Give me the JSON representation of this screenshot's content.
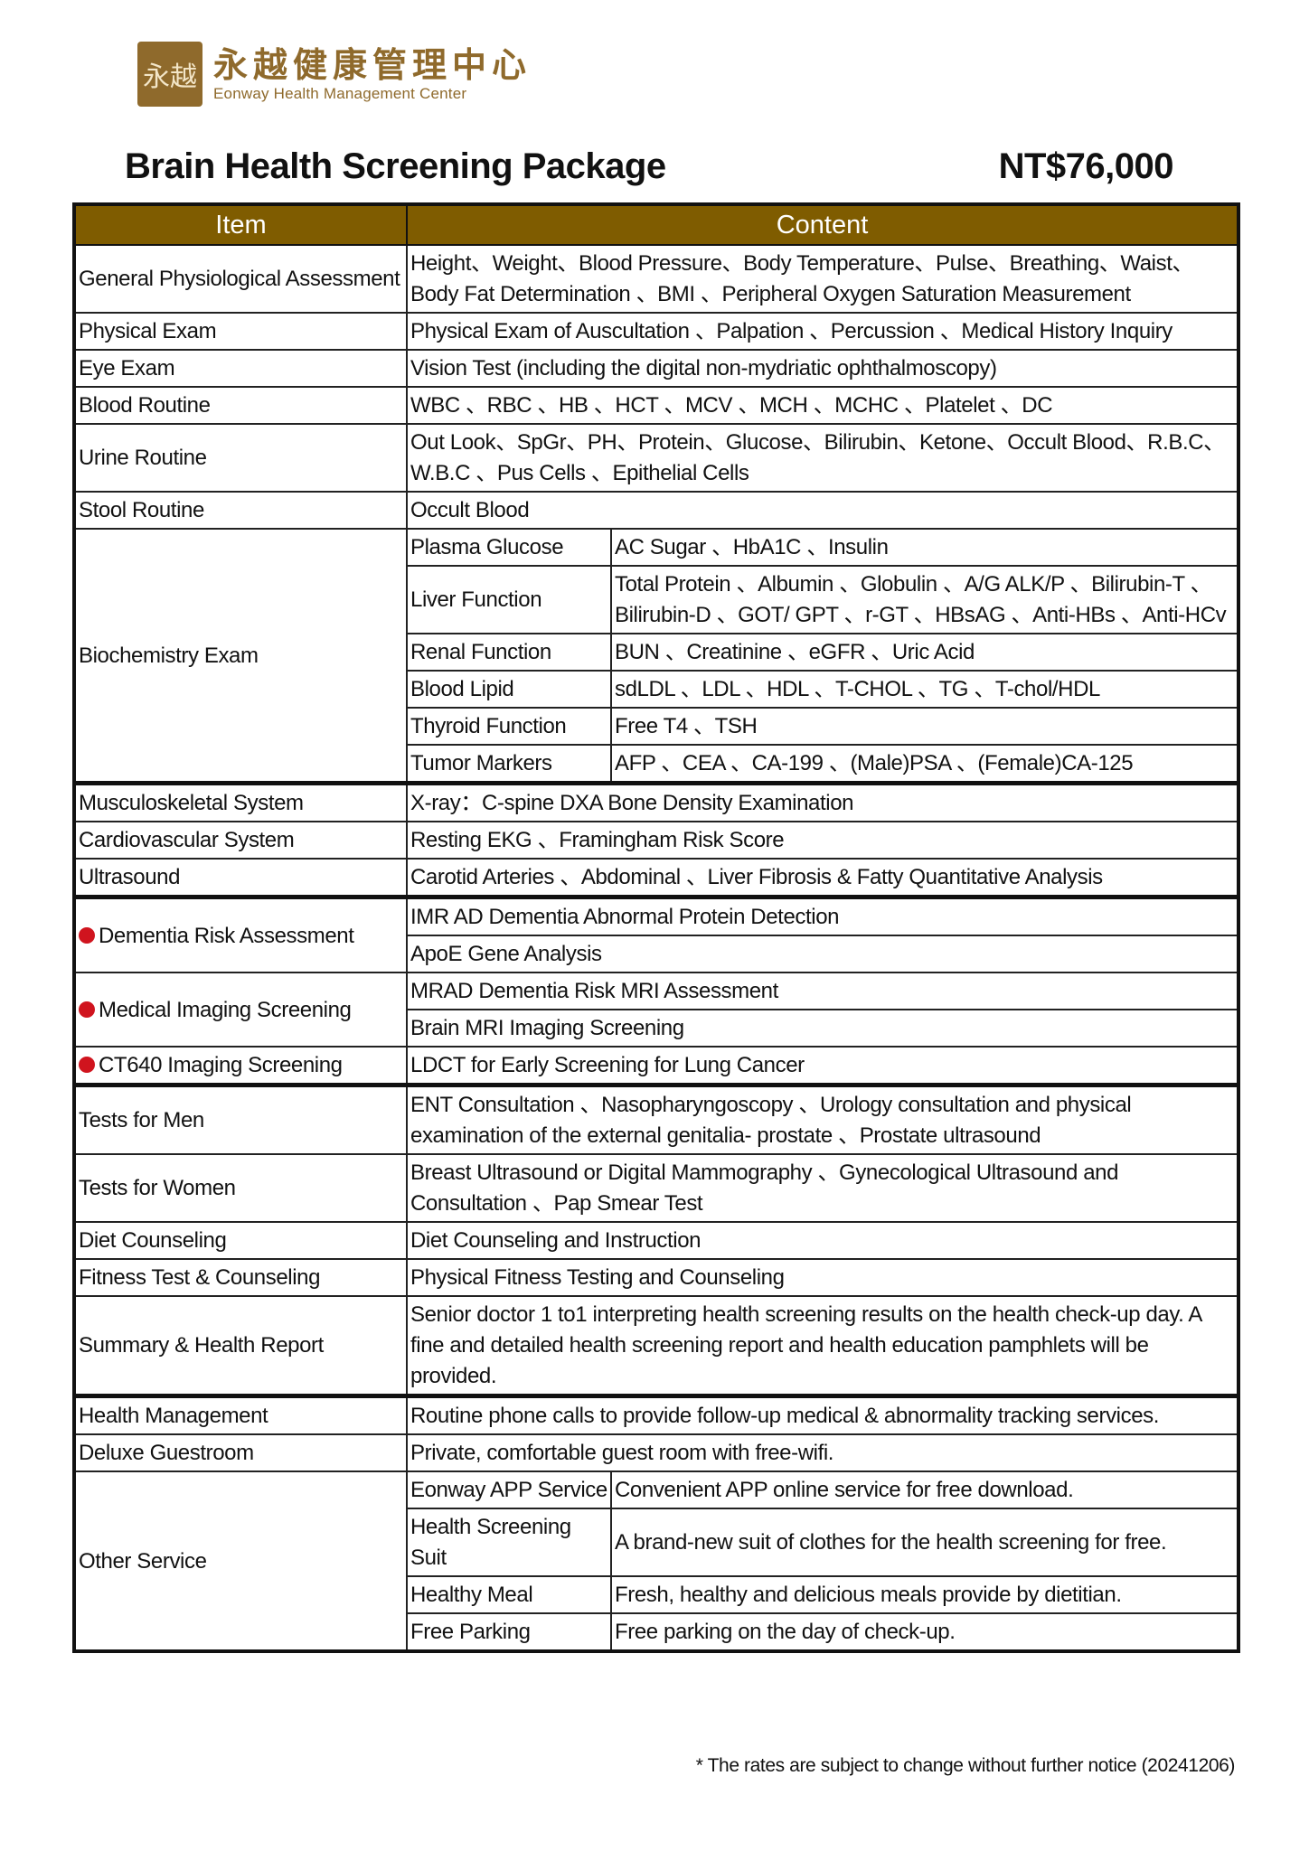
{
  "logo": {
    "cn": "永越健康管理中心",
    "en": "Eonway Health Management Center",
    "mark": "永越"
  },
  "title": "Brain Health Screening Package",
  "price": "NT$76,000",
  "colors": {
    "header": "#7f5c00",
    "logo": "#8f6a2c",
    "bullet": "#d0141e"
  },
  "table": {
    "headers": [
      "Item",
      "Content"
    ],
    "groups": [
      [
        {
          "item": "General Physiological Assessment",
          "content": "Height、Weight、Blood Pressure、Body Temperature、Pulse、Breathing、Waist、Body Fat Determination 、BMI 、Peripheral Oxygen Saturation Measurement"
        },
        {
          "item": "Physical Exam",
          "content": "Physical Exam of Auscultation 、Palpation 、Percussion 、Medical History Inquiry"
        },
        {
          "item": "Eye Exam",
          "content": "Vision Test (including the digital non-mydriatic ophthalmoscopy)"
        },
        {
          "item": "Blood Routine",
          "content": "WBC 、RBC 、HB 、HCT 、MCV 、MCH 、MCHC 、Platelet 、DC"
        },
        {
          "item": "Urine Routine",
          "content": "Out Look、SpGr、PH、Protein、Glucose、Bilirubin、Ketone、Occult Blood、R.B.C、W.B.C 、Pus Cells 、Epithelial Cells"
        },
        {
          "item": "Stool Routine",
          "content": "Occult Blood"
        },
        {
          "item": "Biochemistry Exam",
          "subrows": [
            {
              "label": "Plasma Glucose",
              "content": "AC Sugar 、HbA1C 、Insulin"
            },
            {
              "label": "Liver Function",
              "content": "Total Protein 、Albumin 、Globulin 、A/G ALK/P 、Bilirubin-T 、Bilirubin-D 、GOT/ GPT 、r-GT 、HBsAG 、Anti-HBs 、Anti-HCv"
            },
            {
              "label": "Renal Function",
              "content": "BUN 、Creatinine 、eGFR 、Uric Acid"
            },
            {
              "label": "Blood Lipid",
              "content": "sdLDL 、LDL 、HDL 、T-CHOL 、TG 、T-chol/HDL"
            },
            {
              "label": "Thyroid Function",
              "content": "Free T4 、TSH"
            },
            {
              "label": "Tumor Markers",
              "content": "AFP 、CEA 、CA-199 、(Male)PSA 、(Female)CA-125"
            }
          ]
        }
      ],
      [
        {
          "item": "Musculoskeletal System",
          "content": "X-ray：C-spine DXA Bone Density Examination"
        },
        {
          "item": "Cardiovascular System",
          "content": "Resting EKG 、Framingham Risk Score"
        },
        {
          "item": "Ultrasound",
          "content": "Carotid Arteries 、Abdominal 、Liver Fibrosis & Fatty Quantitative Analysis"
        }
      ],
      [
        {
          "item": "Dementia Risk Assessment",
          "bullet": true,
          "contents": [
            "IMR AD Dementia Abnormal Protein Detection",
            "ApoE Gene Analysis"
          ]
        },
        {
          "item": "Medical Imaging Screening",
          "bullet": true,
          "contents": [
            "MRAD Dementia Risk MRI Assessment",
            "Brain MRI Imaging Screening"
          ]
        },
        {
          "item": "CT640 Imaging Screening",
          "bullet": true,
          "contents": [
            "LDCT for Early Screening for Lung Cancer"
          ]
        }
      ],
      [
        {
          "item": "Tests for Men",
          "content": "ENT Consultation 、Nasopharyngoscopy 、Urology consultation and physical examination of the external genitalia- prostate 、Prostate ultrasound"
        },
        {
          "item": "Tests for Women",
          "content": "Breast Ultrasound or Digital Mammography 、Gynecological Ultrasound and Consultation 、Pap Smear Test"
        },
        {
          "item": "Diet Counseling",
          "content": "Diet Counseling and Instruction"
        },
        {
          "item": "Fitness Test & Counseling",
          "content": "Physical Fitness Testing and Counseling"
        },
        {
          "item": "Summary & Health Report",
          "content": "Senior doctor 1 to1 interpreting health screening results on the health check-up day. A fine and detailed health screening report and health education pamphlets will be provided."
        }
      ],
      [
        {
          "item": "Health Management",
          "content": "Routine phone calls to provide follow-up medical & abnormality tracking services."
        },
        {
          "item": "Deluxe Guestroom",
          "content": "Private, comfortable guest room with free-wifi."
        },
        {
          "item": "Other Service",
          "subrows": [
            {
              "label": "Eonway APP Service",
              "content": "Convenient APP online service for free download."
            },
            {
              "label": "Health Screening Suit",
              "content": "A brand-new suit of clothes for the health screening for free."
            },
            {
              "label": "Healthy Meal",
              "content": "Fresh, healthy and delicious meals provide by dietitian."
            },
            {
              "label": "Free Parking",
              "content": "Free parking on the day of check-up."
            }
          ]
        }
      ]
    ]
  },
  "footnote": "* The rates are subject to change without further notice (20241206)"
}
